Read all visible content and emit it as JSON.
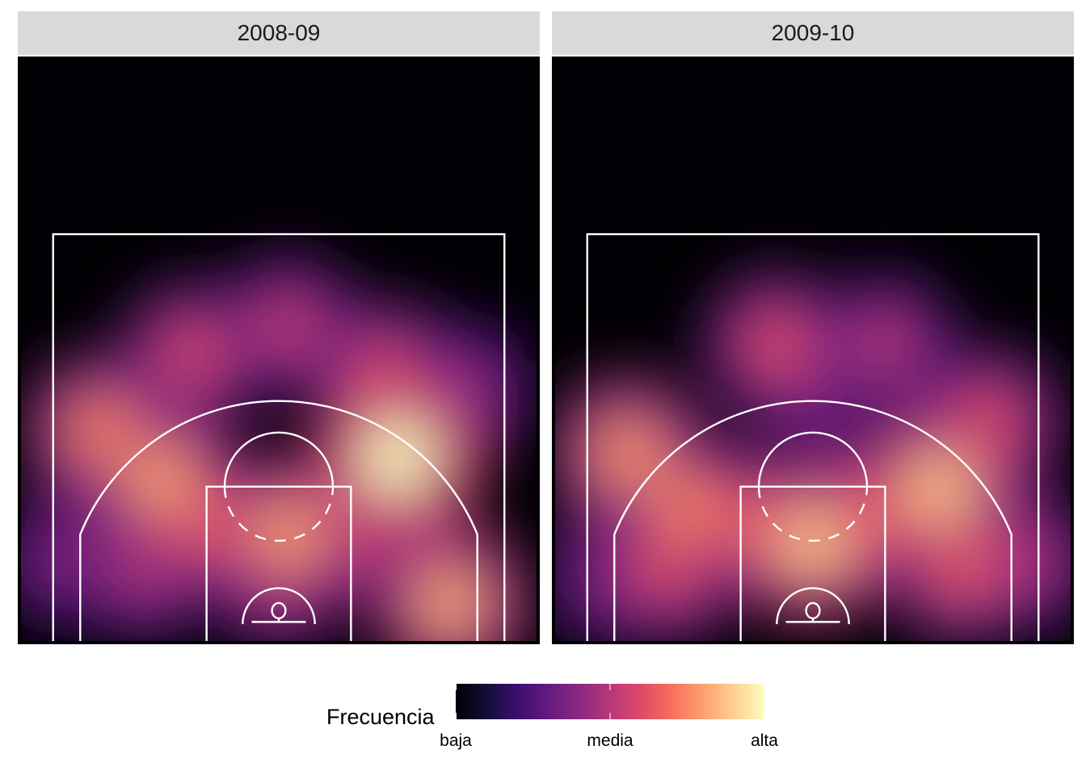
{
  "chart_data": {
    "type": "heatmap",
    "facets": [
      {
        "label": "2008-09",
        "hotspots": [
          {
            "x": -198,
            "y": 205,
            "intensity": 0.74
          },
          {
            "x": -130,
            "y": 150,
            "intensity": 0.8
          },
          {
            "x": -95,
            "y": 290,
            "intensity": 0.6
          },
          {
            "x": 10,
            "y": 320,
            "intensity": 0.55
          },
          {
            "x": 115,
            "y": 270,
            "intensity": 0.6
          },
          {
            "x": 132,
            "y": 175,
            "intensity": 1.0
          },
          {
            "x": 205,
            "y": 250,
            "intensity": 0.45
          },
          {
            "x": 10,
            "y": 90,
            "intensity": 0.8
          },
          {
            "x": -80,
            "y": 100,
            "intensity": 0.65
          },
          {
            "x": 90,
            "y": 95,
            "intensity": 0.55
          },
          {
            "x": 190,
            "y": 15,
            "intensity": 0.82
          },
          {
            "x": -150,
            "y": 50,
            "intensity": 0.5
          },
          {
            "x": -240,
            "y": 60,
            "intensity": 0.4
          },
          {
            "x": 0,
            "y": 40,
            "intensity": 0.5
          }
        ]
      },
      {
        "label": "2009-10",
        "hotspots": [
          {
            "x": -205,
            "y": 180,
            "intensity": 0.78
          },
          {
            "x": -140,
            "y": 120,
            "intensity": 0.74
          },
          {
            "x": 140,
            "y": 140,
            "intensity": 0.88
          },
          {
            "x": 195,
            "y": 215,
            "intensity": 0.62
          },
          {
            "x": -40,
            "y": 300,
            "intensity": 0.62
          },
          {
            "x": 80,
            "y": 300,
            "intensity": 0.52
          },
          {
            "x": 0,
            "y": 80,
            "intensity": 0.88
          },
          {
            "x": -70,
            "y": 100,
            "intensity": 0.65
          },
          {
            "x": 70,
            "y": 110,
            "intensity": 0.65
          },
          {
            "x": -160,
            "y": 50,
            "intensity": 0.62
          },
          {
            "x": 165,
            "y": 50,
            "intensity": 0.65
          },
          {
            "x": -230,
            "y": 40,
            "intensity": 0.4
          },
          {
            "x": 235,
            "y": 60,
            "intensity": 0.5
          },
          {
            "x": 0,
            "y": 250,
            "intensity": 0.4
          }
        ]
      }
    ],
    "colorscale": "magma",
    "legend": {
      "title": "Frecuencia",
      "labels": [
        "baja",
        "media",
        "alta"
      ],
      "position": "bottom"
    }
  }
}
